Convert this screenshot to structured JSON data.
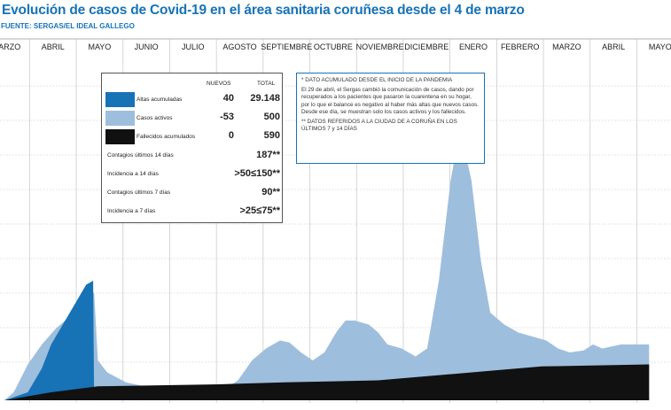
{
  "title": "Evolución de casos de Covid-19 en el área sanitaria coruñesa desde el 4 de marzo",
  "source": "FUENTE: SERGAS/EL IDEAL GALLEGO",
  "legend": {
    "col_nuevos": "NUEVOS",
    "col_total": "TOTAL",
    "rows": [
      {
        "label": "Altas acumuladas",
        "nuevos": "40",
        "total": "29.148",
        "color": "#1773b6"
      },
      {
        "label": "Casos activos",
        "nuevos": "-53",
        "total": "500",
        "color": "#9ebedd"
      },
      {
        "label": "Fallecidos acumulados",
        "nuevos": "0",
        "total": "590",
        "color": "#111111"
      }
    ],
    "stats": [
      {
        "label": "Contagios últimos 14 días",
        "value": "187**"
      },
      {
        "label": "Incidencia a 14 días",
        "value": ">50≤150**"
      },
      {
        "label": "Contagios últimos 7 días",
        "value": "90**"
      },
      {
        "label": "Incidencia a 7 días",
        "value": ">25≤75**"
      }
    ]
  },
  "notes": {
    "note1": "* DATO ACUMULADO DESDE EL INICIO DE LA PANDEMIA",
    "note2": "El 29 de abril, el Sergas cambió la comunicación de casos, dando por recuperados a los pacientes que pasaron la cuarentena en su hogar, por lo que el balance es negativo al haber más altas que nuevos casos. Desde ese día, se muestran solo los casos activos y los fallecidos.",
    "note3": "** DATOS REFERIDOS A LA CIUDAD DE A CORUÑA EN LOS ÚLTIMOS 7 y 14 DÍAS"
  },
  "chart_data": {
    "type": "area",
    "title": "Evolución de casos de Covid-19 en el área sanitaria coruñesa desde el 4 de marzo",
    "x_labels": [
      "MARZO",
      "ABRIL",
      "MAYO",
      "JUNIO",
      "JULIO",
      "AGOSTO",
      "SEPTIEMBRE",
      "OCTUBRE",
      "NOVIEMBRE",
      "DICIEMBRE",
      "ENERO",
      "FEBRERO",
      "MARZO",
      "ABRIL",
      "MAYO"
    ],
    "grid": true,
    "series": [
      {
        "name": "Altas acumuladas",
        "color": "#1773b6",
        "points": [
          [
            0,
            0
          ],
          [
            0.5,
            0.02
          ],
          [
            0.8,
            0.08
          ],
          [
            1.0,
            0.14
          ],
          [
            1.3,
            0.2
          ],
          [
            1.5,
            0.24
          ],
          [
            1.75,
            0.29
          ],
          [
            1.9,
            0.3
          ],
          [
            1.92,
            0
          ]
        ]
      },
      {
        "name": "Casos activos",
        "color": "#9ebedd",
        "points": [
          [
            0,
            0
          ],
          [
            0.2,
            0.02
          ],
          [
            0.5,
            0.09
          ],
          [
            0.8,
            0.14
          ],
          [
            1.1,
            0.18
          ],
          [
            1.4,
            0.21
          ],
          [
            1.6,
            0.24
          ],
          [
            1.85,
            0.27
          ],
          [
            1.92,
            0.27
          ],
          [
            2.0,
            0.1
          ],
          [
            2.2,
            0.07
          ],
          [
            2.6,
            0.045
          ],
          [
            3.0,
            0.035
          ],
          [
            3.5,
            0.025
          ],
          [
            4.0,
            0.018
          ],
          [
            4.6,
            0.02
          ],
          [
            5.0,
            0.05
          ],
          [
            5.3,
            0.1
          ],
          [
            5.6,
            0.13
          ],
          [
            5.9,
            0.15
          ],
          [
            6.1,
            0.145
          ],
          [
            6.35,
            0.12
          ],
          [
            6.6,
            0.1
          ],
          [
            6.85,
            0.12
          ],
          [
            7.1,
            0.17
          ],
          [
            7.3,
            0.2
          ],
          [
            7.5,
            0.2
          ],
          [
            7.8,
            0.19
          ],
          [
            8.0,
            0.17
          ],
          [
            8.2,
            0.14
          ],
          [
            8.5,
            0.13
          ],
          [
            8.8,
            0.11
          ],
          [
            9.05,
            0.13
          ],
          [
            9.3,
            0.3
          ],
          [
            9.55,
            0.55
          ],
          [
            9.72,
            0.66
          ],
          [
            9.85,
            0.63
          ],
          [
            10.0,
            0.55
          ],
          [
            10.2,
            0.35
          ],
          [
            10.4,
            0.22
          ],
          [
            10.7,
            0.19
          ],
          [
            11.0,
            0.17
          ],
          [
            11.3,
            0.16
          ],
          [
            11.6,
            0.15
          ],
          [
            11.85,
            0.13
          ],
          [
            12.1,
            0.12
          ],
          [
            12.4,
            0.125
          ],
          [
            12.6,
            0.14
          ],
          [
            12.8,
            0.13
          ],
          [
            13.2,
            0.14
          ],
          [
            13.6,
            0.14
          ],
          [
            13.8,
            0.14
          ]
        ]
      },
      {
        "name": "Fallecidos acumulados",
        "color": "#111111",
        "points": [
          [
            0,
            0
          ],
          [
            1.0,
            0.02
          ],
          [
            2.0,
            0.035
          ],
          [
            4.6,
            0.04
          ],
          [
            6.0,
            0.045
          ],
          [
            8.0,
            0.05
          ],
          [
            9.5,
            0.065
          ],
          [
            10.5,
            0.075
          ],
          [
            11.5,
            0.085
          ],
          [
            13.8,
            0.09
          ]
        ]
      }
    ]
  }
}
